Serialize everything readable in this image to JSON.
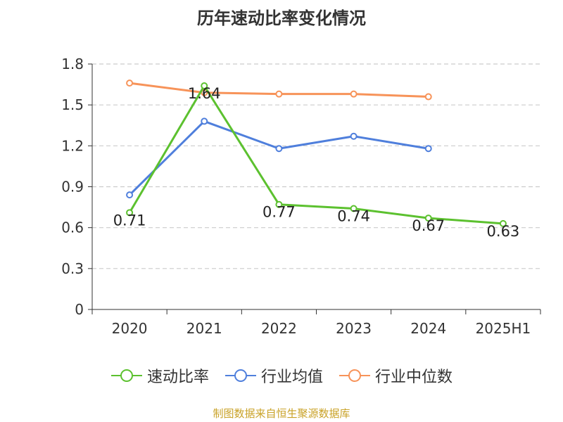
{
  "title": "历年速动比率变化情况",
  "source_note": "制图数据来自恒生聚源数据库",
  "chart_data": {
    "type": "line",
    "title": "历年速动比率变化情况",
    "xlabel": "",
    "ylabel": "",
    "categories": [
      "2020",
      "2021",
      "2022",
      "2023",
      "2024",
      "2025H1"
    ],
    "ylim": [
      0,
      1.8
    ],
    "yticks": [
      "0",
      "0.3",
      "0.6",
      "0.9",
      "1.2",
      "1.5",
      "1.8"
    ],
    "grid": true,
    "legend_position": "bottom",
    "series": [
      {
        "name": "速动比率",
        "color": "#5cc12f",
        "values": [
          0.71,
          1.64,
          0.77,
          0.74,
          0.67,
          0.63
        ],
        "labels": [
          "0.71",
          "1.64",
          "0.77",
          "0.74",
          "0.67",
          "0.63"
        ]
      },
      {
        "name": "行业均值",
        "color": "#4f7fdc",
        "values": [
          0.84,
          1.38,
          1.18,
          1.27,
          1.18,
          null
        ]
      },
      {
        "name": "行业中位数",
        "color": "#f79359",
        "values": [
          1.66,
          1.59,
          1.58,
          1.58,
          1.56,
          null
        ]
      }
    ]
  }
}
